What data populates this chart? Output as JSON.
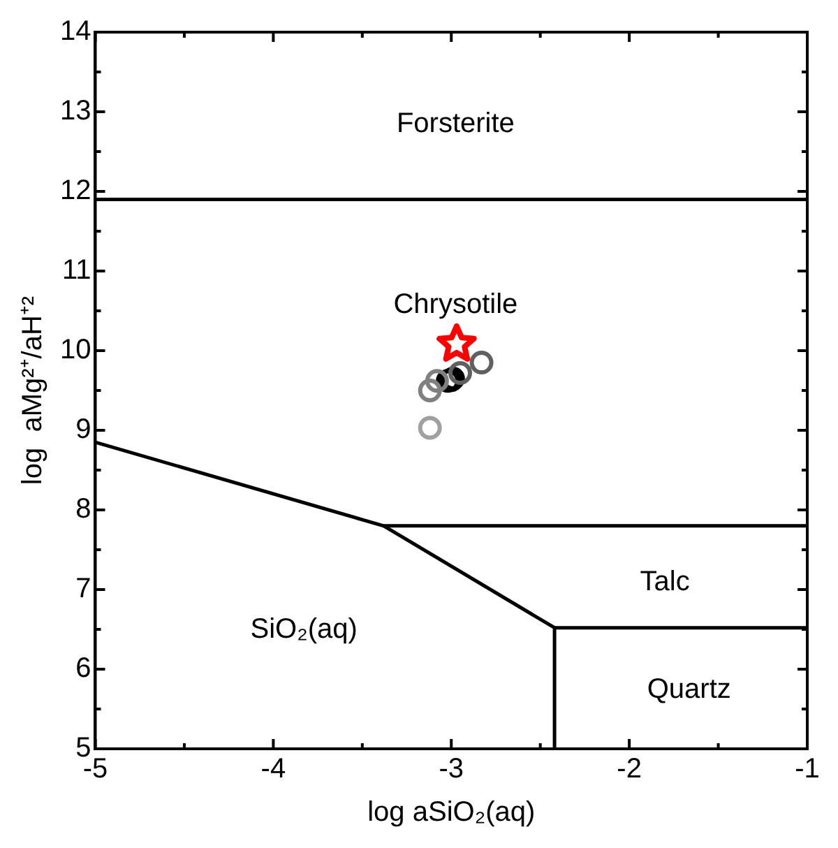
{
  "chart_data": {
    "type": "scatter",
    "xlabel": "log aSiO₂(aq)",
    "ylabel": "log  aMg²⁺/aH⁺²",
    "xlim": [
      -5,
      -1
    ],
    "ylim": [
      5,
      14
    ],
    "xticks": [
      -5,
      {
        "value": -4.5,
        "label": null
      },
      -4,
      {
        "value": -3.5,
        "label": null
      },
      -3,
      {
        "value": -2.5,
        "label": null
      },
      -2,
      {
        "value": -1.5,
        "label": null
      },
      -1
    ],
    "yticks": [
      5,
      {
        "value": 5.5,
        "label": null
      },
      6,
      {
        "value": 6.5,
        "label": null
      },
      7,
      {
        "value": 7.5,
        "label": null
      },
      8,
      {
        "value": 8.5,
        "label": null
      },
      9,
      {
        "value": 9.5,
        "label": null
      },
      10,
      {
        "value": 10.5,
        "label": null
      },
      11,
      {
        "value": 11.5,
        "label": null
      },
      12,
      {
        "value": 12.5,
        "label": null
      },
      13,
      {
        "value": 13.5,
        "label": null
      },
      14
    ],
    "grid": false,
    "legend": false,
    "series": [
      {
        "type": "line",
        "color": "#000000",
        "marker": "none",
        "x": [
          -5,
          -1
        ],
        "values": [
          11.9,
          11.9
        ]
      },
      {
        "type": "line",
        "color": "#000000",
        "marker": "none",
        "x": [
          -5,
          -3.38,
          -2.42,
          -2.42
        ],
        "values": [
          8.85,
          7.8,
          6.52,
          5
        ]
      },
      {
        "type": "line",
        "color": "#000000",
        "marker": "none",
        "x": [
          -3.38,
          -1
        ],
        "values": [
          7.8,
          7.8
        ]
      },
      {
        "type": "line",
        "color": "#000000",
        "marker": "none",
        "x": [
          -2.42,
          -1
        ],
        "values": [
          6.52,
          6.52
        ]
      },
      {
        "color": "#a0a0a0",
        "marker": "circle",
        "x": [
          -3.12
        ],
        "values": [
          9.03
        ]
      },
      {
        "color": "#808080",
        "marker": "circle",
        "x": [
          -3.12,
          -3.08
        ],
        "values": [
          9.5,
          9.62
        ]
      },
      {
        "color": "#606060",
        "marker": "circle",
        "x": [
          -2.95,
          -2.83
        ],
        "values": [
          9.72,
          9.85
        ]
      },
      {
        "color": "#000000",
        "marker": "circle",
        "x": [
          -3.02,
          -3.0,
          -2.99
        ],
        "values": [
          9.62,
          9.63,
          9.65
        ]
      },
      {
        "color": "#ff0000",
        "marker": "star",
        "x": [
          -2.97
        ],
        "values": [
          10.08
        ]
      }
    ],
    "annotations": [
      "Forsterite",
      "Chrysotile",
      "Talc",
      "SiO₂(aq)",
      "Quartz"
    ]
  }
}
